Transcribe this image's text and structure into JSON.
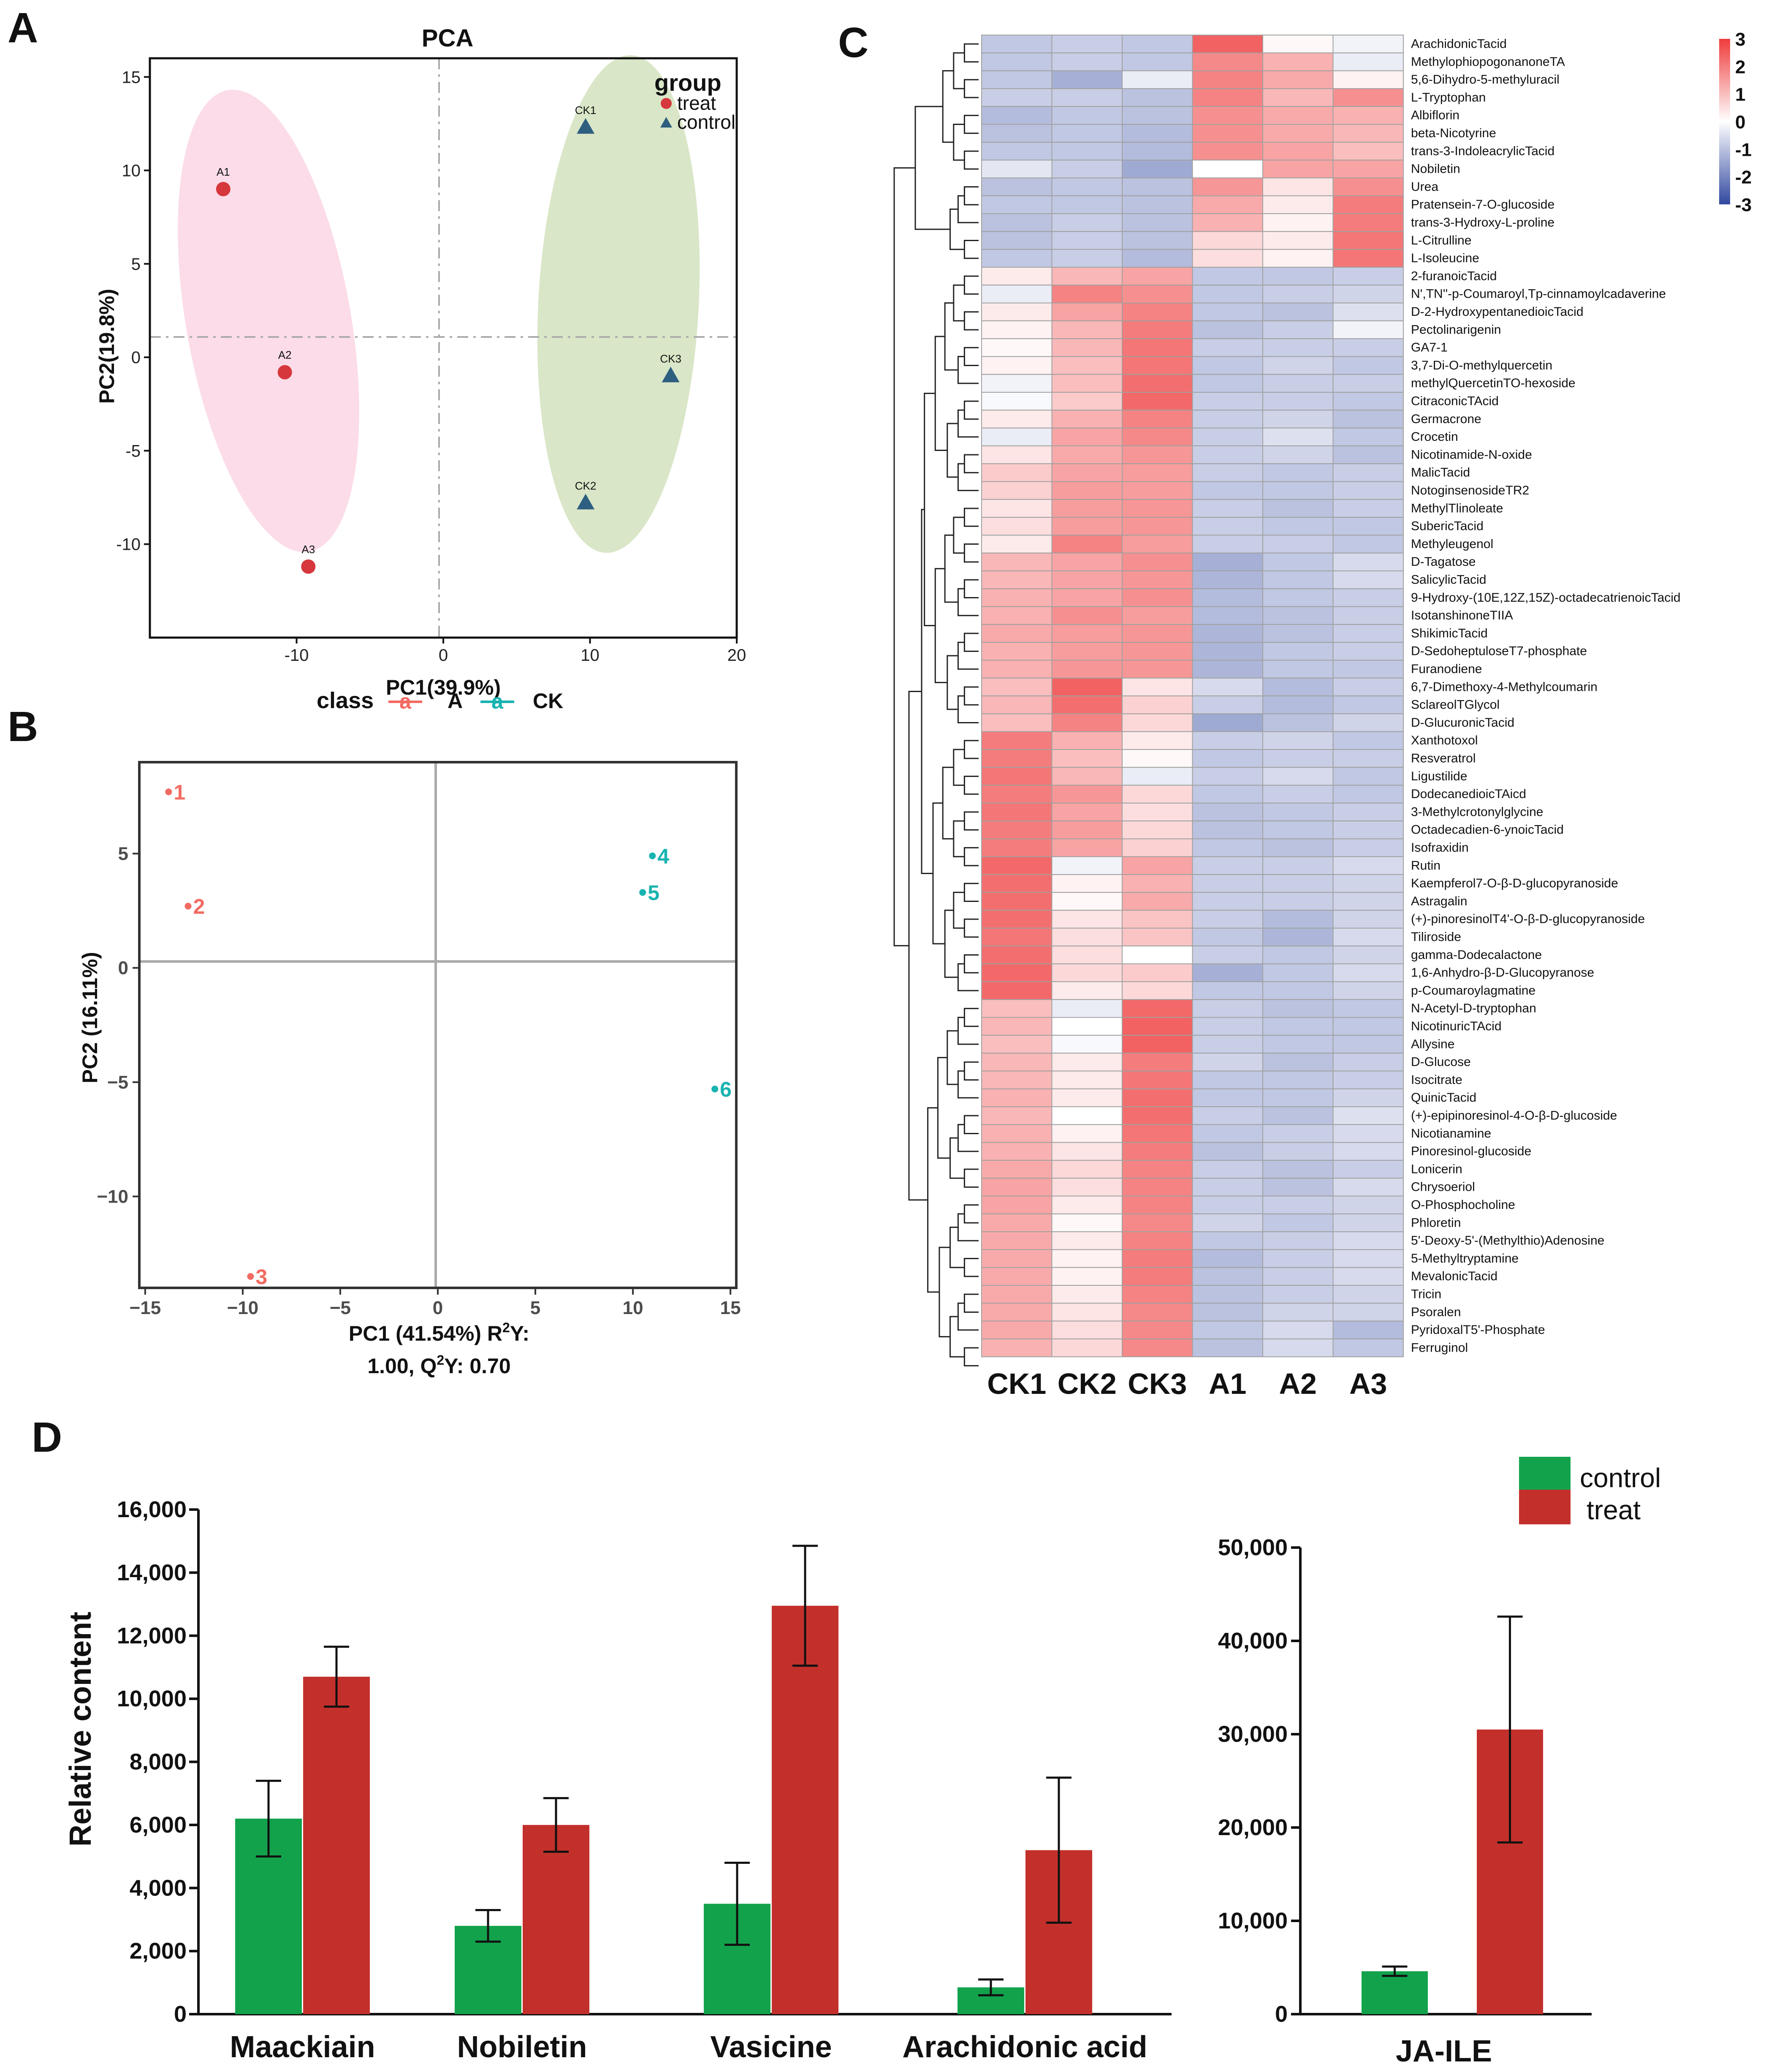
{
  "panel_letters": {
    "a": "A",
    "b": "B",
    "c": "C",
    "d": "D"
  },
  "colors": {
    "treat": "#d6373c",
    "control": "#2e5f80",
    "ellipse_treat": "#fbdce8",
    "ellipse_control": "#d9e6c7",
    "classA": "#f26b63",
    "classCK": "#18b3b0",
    "bar_control": "#13a24c",
    "bar_treat": "#c3302b",
    "heat_low": "#3148a0",
    "heat_mid": "#ffffff",
    "heat_high": "#ef3b3b"
  },
  "chart_data": [
    {
      "id": "A",
      "type": "scatter",
      "title": "PCA",
      "xlabel": "PC1(39.9%)",
      "ylabel": "PC2(19.8%)",
      "xlim": [
        -20,
        20
      ],
      "ylim": [
        -15,
        16
      ],
      "xticks": [
        -10,
        0,
        10,
        20
      ],
      "yticks": [
        15,
        10,
        5,
        0,
        -5,
        -10
      ],
      "legend_title": "group",
      "legend": [
        "treat",
        "control"
      ],
      "series": [
        {
          "name": "treat",
          "marker": "circle",
          "points": [
            {
              "label": "A1",
              "x": -15,
              "y": 9
            },
            {
              "label": "A2",
              "x": -10.8,
              "y": -0.8
            },
            {
              "label": "A3",
              "x": -9.2,
              "y": -11.2
            }
          ]
        },
        {
          "name": "control",
          "marker": "triangle",
          "points": [
            {
              "label": "CK1",
              "x": 9.7,
              "y": 12.3
            },
            {
              "label": "CK3",
              "x": 15.5,
              "y": -1
            },
            {
              "label": "CK2",
              "x": 9.7,
              "y": -7.8
            }
          ]
        }
      ]
    },
    {
      "id": "B",
      "type": "scatter",
      "legend_title": "class",
      "legend": [
        "A",
        "CK"
      ],
      "legend_key": "a",
      "xlabel_line1": "PC1 (41.54%) R",
      "xlabel_sup1": "2",
      "xlabel_line1b": "Y:",
      "xlabel_line2": "1.00, Q",
      "xlabel_sup2": "2",
      "xlabel_line2b": "Y: 0.70",
      "ylabel": "PC2 (16.11%)",
      "xlim": [
        -15.3,
        15.3
      ],
      "ylim": [
        -14,
        9
      ],
      "xticks": [
        -15,
        -10,
        -5,
        0,
        5,
        10,
        15
      ],
      "yticks": [
        5,
        0,
        -5,
        -10
      ],
      "xtick_labels": [
        "−15",
        "−10",
        "−5",
        "0",
        "5",
        "10",
        "15"
      ],
      "ytick_labels": [
        "5",
        "0",
        "−5",
        "−10"
      ],
      "series": [
        {
          "name": "A",
          "points": [
            {
              "label": "1",
              "x": -13.8,
              "y": 7.7
            },
            {
              "label": "2",
              "x": -12.8,
              "y": 2.7
            },
            {
              "label": "3",
              "x": -9.6,
              "y": -13.5
            }
          ]
        },
        {
          "name": "CK",
          "points": [
            {
              "label": "4",
              "x": 11.0,
              "y": 4.9
            },
            {
              "label": "5",
              "x": 10.5,
              "y": 3.3
            },
            {
              "label": "6",
              "x": 14.2,
              "y": -5.3
            }
          ]
        }
      ]
    },
    {
      "id": "C",
      "type": "heatmap",
      "columns": [
        "CK1",
        "CK2",
        "CK3",
        "A1",
        "A2",
        "A3"
      ],
      "scale_ticks": [
        "3",
        "2",
        "1",
        "0",
        "-1",
        "-2",
        "-3"
      ],
      "vmin": -3,
      "vmax": 3,
      "rows": [
        {
          "name": "ArachidonicTacid",
          "v": [
            -0.9,
            -0.8,
            -0.9,
            2.4,
            0.1,
            -0.2
          ]
        },
        {
          "name": "MethylophiopogonanoneTA",
          "v": [
            -0.9,
            -0.8,
            -0.9,
            1.8,
            1.2,
            -0.3
          ]
        },
        {
          "name": "5,6-Dihydro-5-methyluracil",
          "v": [
            -0.9,
            -1.3,
            -0.3,
            1.9,
            1.3,
            0.2
          ]
        },
        {
          "name": "L-Tryptophan",
          "v": [
            -0.8,
            -0.8,
            -1.0,
            1.9,
            1.1,
            1.7
          ]
        },
        {
          "name": "Albiflorin",
          "v": [
            -1.1,
            -0.9,
            -1.0,
            1.7,
            1.3,
            1.2
          ]
        },
        {
          "name": "beta-Nicotyrine",
          "v": [
            -1.0,
            -0.9,
            -1.1,
            1.7,
            1.3,
            1.1
          ]
        },
        {
          "name": "trans-3-IndoleacrylicTacid",
          "v": [
            -0.9,
            -0.9,
            -1.1,
            1.7,
            1.4,
            1.0
          ]
        },
        {
          "name": "Nobiletin",
          "v": [
            -0.4,
            -0.8,
            -1.4,
            0.0,
            1.4,
            1.4
          ]
        },
        {
          "name": "Urea",
          "v": [
            -1.0,
            -0.9,
            -1.0,
            1.6,
            0.4,
            1.7
          ]
        },
        {
          "name": "Pratensein-7-O-glucoside",
          "v": [
            -0.9,
            -0.9,
            -1.0,
            1.3,
            0.3,
            2.0
          ]
        },
        {
          "name": "trans-3-Hydroxy-L-proline",
          "v": [
            -1.0,
            -0.8,
            -1.0,
            1.2,
            0.2,
            2.0
          ]
        },
        {
          "name": "L-Citrulline",
          "v": [
            -1.0,
            -0.8,
            -1.0,
            0.6,
            0.3,
            2.1
          ]
        },
        {
          "name": "L-Isoleucine",
          "v": [
            -0.9,
            -0.8,
            -1.1,
            0.5,
            0.2,
            2.1
          ]
        },
        {
          "name": "2-furanoicTacid",
          "v": [
            0.3,
            1.1,
            1.4,
            -0.9,
            -0.9,
            -0.8
          ]
        },
        {
          "name": "N',TN''-p-Coumaroyl,Tp-cinnamoylcadaverine",
          "v": [
            -0.3,
            1.9,
            1.7,
            -0.9,
            -0.8,
            -0.7
          ]
        },
        {
          "name": "D-2-HydroxypentanedioicTacid",
          "v": [
            0.3,
            1.4,
            1.9,
            -0.9,
            -1.0,
            -0.5
          ]
        },
        {
          "name": "Pectolinarigenin",
          "v": [
            0.2,
            1.1,
            2.0,
            -1.0,
            -0.8,
            -0.2
          ]
        },
        {
          "name": "GA7-1",
          "v": [
            0.1,
            1.1,
            2.1,
            -0.8,
            -0.8,
            -0.8
          ]
        },
        {
          "name": "3,7-Di-O-methylquercetin",
          "v": [
            0.2,
            1.0,
            2.1,
            -0.9,
            -0.7,
            -0.9
          ]
        },
        {
          "name": "methylQuercetinTO-hexoside",
          "v": [
            -0.2,
            1.0,
            2.2,
            -0.9,
            -0.8,
            -0.8
          ]
        },
        {
          "name": "CitraconicTAcid",
          "v": [
            -0.1,
            0.8,
            2.3,
            -0.8,
            -0.8,
            -0.9
          ]
        },
        {
          "name": "Germacrone",
          "v": [
            0.3,
            1.2,
            1.9,
            -0.8,
            -0.7,
            -1.0
          ]
        },
        {
          "name": "Crocetin",
          "v": [
            -0.3,
            1.4,
            1.8,
            -0.8,
            -0.5,
            -0.9
          ]
        },
        {
          "name": "Nicotinamide-N-oxide",
          "v": [
            0.4,
            1.3,
            1.6,
            -0.8,
            -0.7,
            -1.0
          ]
        },
        {
          "name": "MalicTacid",
          "v": [
            0.8,
            1.4,
            1.5,
            -0.8,
            -0.9,
            -0.8
          ]
        },
        {
          "name": "NotoginsenosideTR2",
          "v": [
            0.7,
            1.5,
            1.5,
            -0.9,
            -0.9,
            -0.8
          ]
        },
        {
          "name": "MethylTlinoleate",
          "v": [
            0.4,
            1.5,
            1.6,
            -0.8,
            -1.0,
            -0.8
          ]
        },
        {
          "name": "SubericTacid",
          "v": [
            0.5,
            1.5,
            1.6,
            -0.8,
            -0.9,
            -0.9
          ]
        },
        {
          "name": "Methyleugenol",
          "v": [
            0.3,
            1.9,
            1.5,
            -0.8,
            -0.8,
            -0.9
          ]
        },
        {
          "name": "D-Tagatose",
          "v": [
            1.1,
            1.4,
            1.7,
            -1.3,
            -0.9,
            -0.6
          ]
        },
        {
          "name": "SalicylicTacid",
          "v": [
            1.1,
            1.4,
            1.6,
            -1.2,
            -0.9,
            -0.6
          ]
        },
        {
          "name": "9-Hydroxy-(10E,12Z,15Z)-octadecatrienoicTacid",
          "v": [
            1.2,
            1.4,
            1.7,
            -1.1,
            -0.9,
            -0.8
          ]
        },
        {
          "name": "IsotanshinoneTIIA",
          "v": [
            1.2,
            1.7,
            1.5,
            -1.1,
            -1.0,
            -0.8
          ]
        },
        {
          "name": "ShikimicTacid",
          "v": [
            1.3,
            1.5,
            1.6,
            -1.2,
            -1.0,
            -0.8
          ]
        },
        {
          "name": "D-SedoheptuloseT7-phosphate",
          "v": [
            1.2,
            1.5,
            1.6,
            -1.2,
            -0.9,
            -0.8
          ]
        },
        {
          "name": "Furanodiene",
          "v": [
            1.2,
            1.6,
            1.6,
            -1.2,
            -0.9,
            -0.9
          ]
        },
        {
          "name": "6,7-Dimethoxy-4-Methylcoumarin",
          "v": [
            1.0,
            2.4,
            0.4,
            -0.6,
            -1.1,
            -0.8
          ]
        },
        {
          "name": "SclareolTGlycol",
          "v": [
            1.1,
            2.2,
            0.7,
            -0.8,
            -1.1,
            -0.9
          ]
        },
        {
          "name": "D-GlucuronicTacid",
          "v": [
            1.0,
            1.9,
            0.6,
            -1.4,
            -1.0,
            -0.7
          ]
        },
        {
          "name": "Xanthotoxol",
          "v": [
            2.0,
            1.2,
            0.3,
            -0.8,
            -0.7,
            -0.9
          ]
        },
        {
          "name": "Resveratrol",
          "v": [
            2.0,
            1.0,
            0.1,
            -0.9,
            -0.8,
            -0.8
          ]
        },
        {
          "name": "Ligustilide",
          "v": [
            2.1,
            1.1,
            -0.3,
            -0.8,
            -0.6,
            -0.9
          ]
        },
        {
          "name": "DodecanedioicTAicd",
          "v": [
            2.0,
            1.6,
            0.6,
            -0.9,
            -0.8,
            -0.9
          ]
        },
        {
          "name": "3-Methylcrotonylglycine",
          "v": [
            2.1,
            1.4,
            0.5,
            -1.0,
            -0.9,
            -0.8
          ]
        },
        {
          "name": "Octadecadien-6-ynoicTacid",
          "v": [
            2.0,
            1.5,
            0.6,
            -1.0,
            -0.9,
            -0.8
          ]
        },
        {
          "name": "Isofraxidin",
          "v": [
            2.0,
            1.4,
            0.7,
            -0.9,
            -1.0,
            -0.8
          ]
        },
        {
          "name": "Rutin",
          "v": [
            2.3,
            -0.2,
            1.4,
            -0.8,
            -0.8,
            -0.6
          ]
        },
        {
          "name": "Kaempferol7-O-β-D-glucopyranoside",
          "v": [
            2.2,
            0.2,
            1.2,
            -0.8,
            -0.8,
            -0.7
          ]
        },
        {
          "name": "Astragalin",
          "v": [
            2.2,
            0.1,
            1.3,
            -0.8,
            -0.8,
            -0.7
          ]
        },
        {
          "name": "(+)-pinoresinolT4'-O-β-D-glucopyranoside",
          "v": [
            2.2,
            0.4,
            0.9,
            -0.8,
            -1.1,
            -0.7
          ]
        },
        {
          "name": "Tiliroside",
          "v": [
            2.1,
            0.5,
            0.9,
            -0.9,
            -1.2,
            -0.6
          ]
        },
        {
          "name": "gamma-Dodecalactone",
          "v": [
            2.2,
            0.5,
            0.0,
            -0.8,
            -0.9,
            -0.7
          ]
        },
        {
          "name": "1,6-Anhydro-β-D-Glucopyranose",
          "v": [
            2.3,
            0.6,
            0.8,
            -1.3,
            -0.9,
            -0.6
          ]
        },
        {
          "name": "p-Coumaroylagmatine",
          "v": [
            2.3,
            0.3,
            0.6,
            -0.9,
            -0.9,
            -0.7
          ]
        },
        {
          "name": "N-Acetyl-D-tryptophan",
          "v": [
            1.0,
            -0.3,
            2.3,
            -0.8,
            -1.0,
            -0.9
          ]
        },
        {
          "name": "NicotinuricTAcid",
          "v": [
            1.1,
            0.0,
            2.4,
            -0.8,
            -0.9,
            -0.9
          ]
        },
        {
          "name": "Allysine",
          "v": [
            1.0,
            -0.1,
            2.4,
            -0.8,
            -0.9,
            -0.9
          ]
        },
        {
          "name": "D-Glucose",
          "v": [
            1.1,
            0.3,
            2.0,
            -0.7,
            -1.0,
            -0.8
          ]
        },
        {
          "name": "Isocitrate",
          "v": [
            1.1,
            0.3,
            2.1,
            -0.9,
            -0.9,
            -0.8
          ]
        },
        {
          "name": "QuinicTacid",
          "v": [
            1.2,
            0.3,
            2.2,
            -0.9,
            -0.9,
            -0.7
          ]
        },
        {
          "name": "(+)-epipinoresinol-4-O-β-D-glucoside",
          "v": [
            1.1,
            0.0,
            2.2,
            -0.8,
            -1.0,
            -0.5
          ]
        },
        {
          "name": "Nicotianamine",
          "v": [
            1.2,
            0.2,
            2.1,
            -0.9,
            -0.8,
            -0.6
          ]
        },
        {
          "name": "Pinoresinol-glucoside",
          "v": [
            1.2,
            0.4,
            2.0,
            -1.0,
            -0.8,
            -0.6
          ]
        },
        {
          "name": "Lonicerin",
          "v": [
            1.3,
            0.6,
            1.9,
            -0.8,
            -1.0,
            -0.8
          ]
        },
        {
          "name": "Chrysoeriol",
          "v": [
            1.4,
            0.5,
            1.9,
            -0.8,
            -1.0,
            -0.6
          ]
        },
        {
          "name": "O-Phosphocholine",
          "v": [
            1.4,
            0.3,
            1.9,
            -0.8,
            -0.8,
            -0.7
          ]
        },
        {
          "name": "Phloretin",
          "v": [
            1.3,
            0.1,
            1.8,
            -0.7,
            -0.9,
            -0.7
          ]
        },
        {
          "name": "5'-Deoxy-5'-(Methylthio)Adenosine",
          "v": [
            1.3,
            0.3,
            1.9,
            -0.9,
            -0.8,
            -0.6
          ]
        },
        {
          "name": "5-Methyltryptamine",
          "v": [
            1.3,
            0.2,
            2.0,
            -1.1,
            -0.8,
            -0.6
          ]
        },
        {
          "name": "MevalonicTacid",
          "v": [
            1.3,
            0.2,
            2.0,
            -1.0,
            -0.8,
            -0.6
          ]
        },
        {
          "name": "Tricin",
          "v": [
            1.3,
            0.3,
            1.9,
            -1.0,
            -0.8,
            -0.7
          ]
        },
        {
          "name": "Psoralen",
          "v": [
            1.3,
            0.4,
            1.8,
            -1.0,
            -0.7,
            -0.7
          ]
        },
        {
          "name": "PyridoxalT5'-Phosphate",
          "v": [
            1.3,
            0.5,
            1.8,
            -0.9,
            -0.6,
            -1.1
          ]
        },
        {
          "name": "Ferruginol",
          "v": [
            1.2,
            0.6,
            1.8,
            -1.0,
            -0.6,
            -0.9
          ]
        }
      ]
    },
    {
      "id": "D-left",
      "type": "bar",
      "ylabel": "Relative content",
      "ylim": [
        0,
        16000
      ],
      "yticks": [
        "0",
        "2,000",
        "4,000",
        "6,000",
        "8,000",
        "10,000",
        "12,000",
        "14,000",
        "16,000"
      ],
      "categories": [
        "Maackiain",
        "Nobiletin",
        "Vasicine",
        "Arachidonic acid"
      ],
      "series": [
        {
          "name": "control",
          "values": [
            6200,
            2800,
            3500,
            850
          ],
          "errors": [
            1200,
            500,
            1300,
            250
          ]
        },
        {
          "name": "treat",
          "values": [
            10700,
            6000,
            12950,
            5200
          ],
          "errors": [
            950,
            850,
            1900,
            2300
          ]
        }
      ]
    },
    {
      "id": "D-right",
      "type": "bar",
      "ylim": [
        0,
        50000
      ],
      "yticks": [
        "0",
        "10,000",
        "20,000",
        "30,000",
        "40,000",
        "50,000"
      ],
      "categories": [
        "JA-ILE"
      ],
      "legend": [
        "control",
        "treat"
      ],
      "series": [
        {
          "name": "control",
          "values": [
            4600
          ],
          "errors": [
            500
          ]
        },
        {
          "name": "treat",
          "values": [
            30500
          ],
          "errors": [
            12100
          ]
        }
      ]
    }
  ]
}
